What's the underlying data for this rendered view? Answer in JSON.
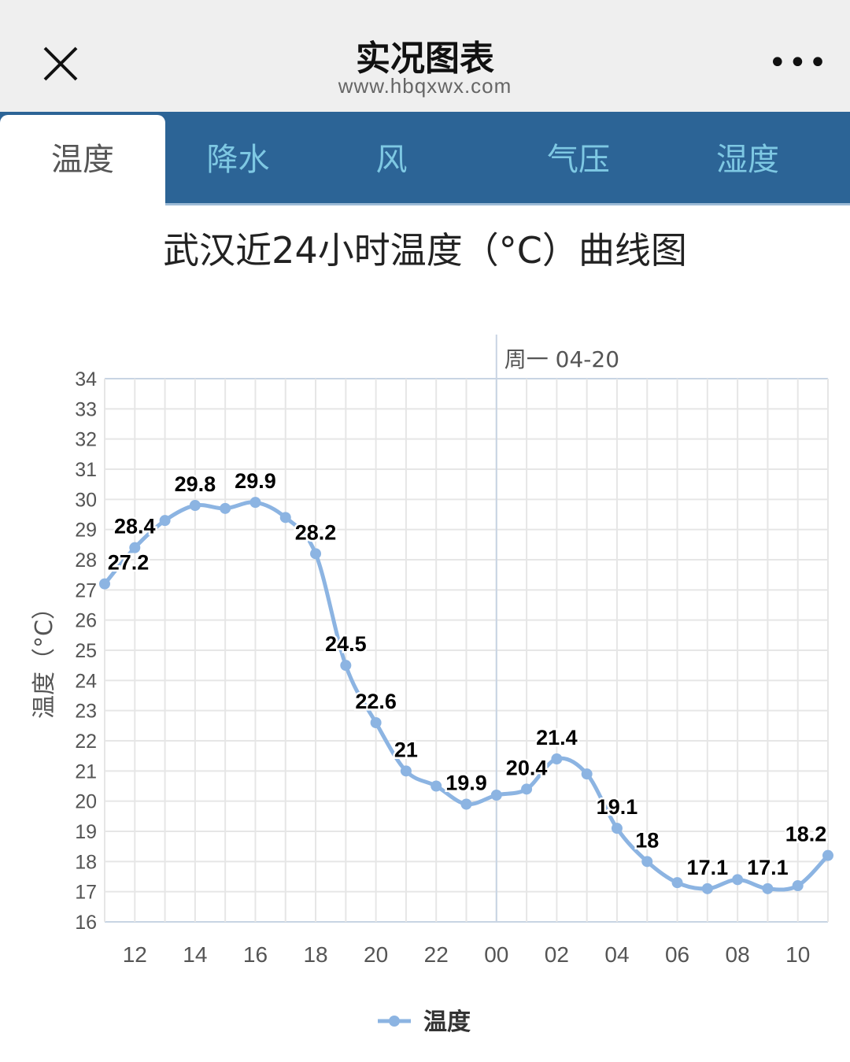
{
  "header": {
    "title": "实况图表",
    "url": "www.hbqxwx.com",
    "close_icon": "close-icon",
    "more_icon": "more-icon"
  },
  "tabs": [
    {
      "label": "温度",
      "active": true
    },
    {
      "label": "降水"
    },
    {
      "label": "风"
    },
    {
      "label": "气压"
    },
    {
      "label": "湿度"
    }
  ],
  "chart_data": {
    "type": "line",
    "title": "武汉近24小时温度（°C）曲线图",
    "ylabel": "温度（°C）",
    "xlabel": "",
    "ylim": [
      16,
      34
    ],
    "yticks": [
      "16",
      "17",
      "18",
      "19",
      "20",
      "21",
      "22",
      "23",
      "24",
      "25",
      "26",
      "27",
      "28",
      "29",
      "30",
      "31",
      "32",
      "33",
      "34"
    ],
    "x": [
      "11",
      "12",
      "13",
      "14",
      "15",
      "16",
      "17",
      "18",
      "19",
      "20",
      "21",
      "22",
      "23",
      "00",
      "01",
      "02",
      "03",
      "04",
      "05",
      "06",
      "07",
      "08",
      "09",
      "10",
      "11"
    ],
    "xticks": [
      "12",
      "14",
      "16",
      "18",
      "20",
      "22",
      "00",
      "02",
      "04",
      "06",
      "08",
      "10"
    ],
    "annotation": {
      "text": "周一 04-20",
      "at": "00"
    },
    "grid": true,
    "legend": "bottom",
    "series": [
      {
        "name": "温度",
        "color": "#8cb4e2",
        "values": [
          27.2,
          28.4,
          29.3,
          29.8,
          29.7,
          29.9,
          29.4,
          28.2,
          24.5,
          22.6,
          21.0,
          20.5,
          19.9,
          20.2,
          20.4,
          21.4,
          20.9,
          19.1,
          18.0,
          17.3,
          17.1,
          17.4,
          17.1,
          17.2,
          18.2
        ],
        "data_labels": [
          "27.2",
          "28.4",
          "",
          "29.8",
          "",
          "29.9",
          "",
          "28.2",
          "24.5",
          "22.6",
          "21",
          "",
          "19.9",
          "",
          "20.4",
          "21.4",
          "",
          "19.1",
          "18",
          "",
          "17.1",
          "",
          "17.1",
          "",
          "18.2"
        ]
      }
    ]
  }
}
